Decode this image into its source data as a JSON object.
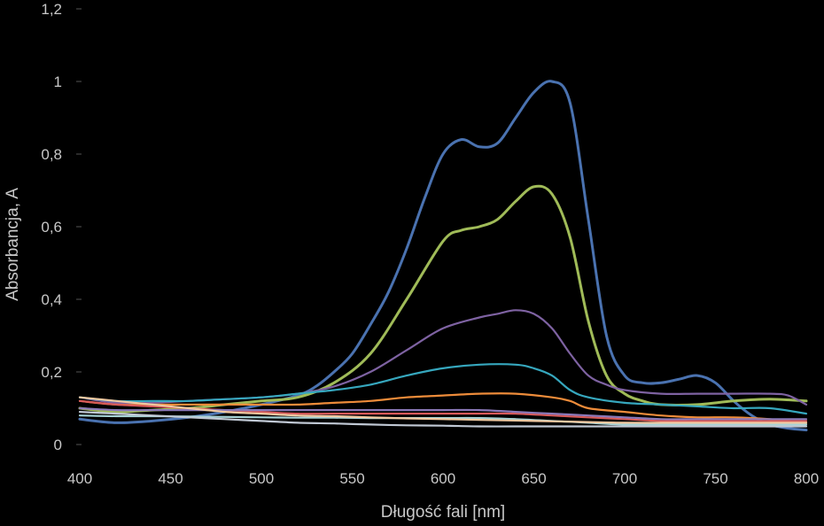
{
  "chart_data": {
    "type": "line",
    "xlabel": "Długość fali [nm]",
    "ylabel": "Absorbancja, A",
    "xlim": [
      400,
      800
    ],
    "ylim": [
      0,
      1.2
    ],
    "x_ticks": [
      400,
      450,
      500,
      550,
      600,
      650,
      700,
      750,
      800
    ],
    "y_ticks": [
      {
        "value": 0,
        "label": "0"
      },
      {
        "value": 0.2,
        "label": "0,2"
      },
      {
        "value": 0.4,
        "label": "0,4"
      },
      {
        "value": 0.6,
        "label": "0,6"
      },
      {
        "value": 0.8,
        "label": "0,8"
      },
      {
        "value": 1,
        "label": "1"
      },
      {
        "value": 1.2,
        "label": "1,2"
      }
    ],
    "grid": false,
    "legend": "none",
    "series": [
      {
        "color": "#4a72b0",
        "points": [
          [
            400,
            0.07
          ],
          [
            420,
            0.06
          ],
          [
            440,
            0.065
          ],
          [
            460,
            0.075
          ],
          [
            480,
            0.09
          ],
          [
            500,
            0.11
          ],
          [
            520,
            0.135
          ],
          [
            530,
            0.16
          ],
          [
            540,
            0.2
          ],
          [
            550,
            0.25
          ],
          [
            560,
            0.33
          ],
          [
            570,
            0.42
          ],
          [
            580,
            0.54
          ],
          [
            590,
            0.68
          ],
          [
            600,
            0.8
          ],
          [
            610,
            0.84
          ],
          [
            620,
            0.82
          ],
          [
            630,
            0.83
          ],
          [
            640,
            0.9
          ],
          [
            650,
            0.97
          ],
          [
            660,
            1.0
          ],
          [
            670,
            0.94
          ],
          [
            680,
            0.62
          ],
          [
            690,
            0.3
          ],
          [
            700,
            0.19
          ],
          [
            710,
            0.17
          ],
          [
            720,
            0.17
          ],
          [
            730,
            0.18
          ],
          [
            740,
            0.19
          ],
          [
            750,
            0.17
          ],
          [
            760,
            0.12
          ],
          [
            770,
            0.08
          ],
          [
            780,
            0.055
          ],
          [
            790,
            0.045
          ],
          [
            800,
            0.04
          ]
        ]
      },
      {
        "color": "#a0bb58",
        "points": [
          [
            400,
            0.1
          ],
          [
            420,
            0.09
          ],
          [
            440,
            0.095
          ],
          [
            460,
            0.1
          ],
          [
            480,
            0.11
          ],
          [
            500,
            0.12
          ],
          [
            520,
            0.13
          ],
          [
            540,
            0.17
          ],
          [
            560,
            0.25
          ],
          [
            580,
            0.4
          ],
          [
            600,
            0.56
          ],
          [
            610,
            0.59
          ],
          [
            620,
            0.6
          ],
          [
            630,
            0.62
          ],
          [
            640,
            0.67
          ],
          [
            650,
            0.71
          ],
          [
            660,
            0.69
          ],
          [
            670,
            0.57
          ],
          [
            680,
            0.34
          ],
          [
            690,
            0.19
          ],
          [
            700,
            0.14
          ],
          [
            710,
            0.12
          ],
          [
            720,
            0.11
          ],
          [
            740,
            0.11
          ],
          [
            760,
            0.12
          ],
          [
            780,
            0.125
          ],
          [
            800,
            0.12
          ]
        ]
      },
      {
        "color": "#7e62a2",
        "points": [
          [
            400,
            0.13
          ],
          [
            420,
            0.115
          ],
          [
            440,
            0.115
          ],
          [
            460,
            0.12
          ],
          [
            480,
            0.125
          ],
          [
            500,
            0.13
          ],
          [
            520,
            0.14
          ],
          [
            540,
            0.16
          ],
          [
            560,
            0.2
          ],
          [
            580,
            0.26
          ],
          [
            600,
            0.32
          ],
          [
            620,
            0.35
          ],
          [
            630,
            0.36
          ],
          [
            640,
            0.37
          ],
          [
            650,
            0.36
          ],
          [
            660,
            0.32
          ],
          [
            670,
            0.25
          ],
          [
            680,
            0.19
          ],
          [
            690,
            0.165
          ],
          [
            700,
            0.15
          ],
          [
            720,
            0.14
          ],
          [
            740,
            0.14
          ],
          [
            760,
            0.14
          ],
          [
            780,
            0.14
          ],
          [
            790,
            0.135
          ],
          [
            800,
            0.11
          ]
        ]
      },
      {
        "color": "#36a7be",
        "points": [
          [
            400,
            0.13
          ],
          [
            420,
            0.12
          ],
          [
            440,
            0.12
          ],
          [
            460,
            0.12
          ],
          [
            480,
            0.125
          ],
          [
            500,
            0.13
          ],
          [
            520,
            0.14
          ],
          [
            540,
            0.15
          ],
          [
            560,
            0.165
          ],
          [
            580,
            0.19
          ],
          [
            600,
            0.21
          ],
          [
            620,
            0.22
          ],
          [
            640,
            0.22
          ],
          [
            650,
            0.21
          ],
          [
            660,
            0.19
          ],
          [
            670,
            0.15
          ],
          [
            680,
            0.13
          ],
          [
            700,
            0.115
          ],
          [
            720,
            0.11
          ],
          [
            740,
            0.105
          ],
          [
            760,
            0.1
          ],
          [
            780,
            0.1
          ],
          [
            800,
            0.085
          ]
        ]
      },
      {
        "color": "#ee8c3a",
        "points": [
          [
            400,
            0.12
          ],
          [
            420,
            0.11
          ],
          [
            440,
            0.11
          ],
          [
            460,
            0.11
          ],
          [
            480,
            0.11
          ],
          [
            500,
            0.11
          ],
          [
            520,
            0.11
          ],
          [
            540,
            0.115
          ],
          [
            560,
            0.12
          ],
          [
            580,
            0.13
          ],
          [
            600,
            0.135
          ],
          [
            620,
            0.14
          ],
          [
            640,
            0.14
          ],
          [
            660,
            0.13
          ],
          [
            670,
            0.12
          ],
          [
            680,
            0.1
          ],
          [
            700,
            0.09
          ],
          [
            720,
            0.08
          ],
          [
            740,
            0.075
          ],
          [
            760,
            0.075
          ],
          [
            780,
            0.07
          ],
          [
            800,
            0.06
          ]
        ]
      },
      {
        "color": "#d85a5a",
        "points": [
          [
            400,
            0.12
          ],
          [
            420,
            0.11
          ],
          [
            440,
            0.105
          ],
          [
            460,
            0.1
          ],
          [
            480,
            0.095
          ],
          [
            500,
            0.09
          ],
          [
            520,
            0.085
          ],
          [
            540,
            0.085
          ],
          [
            560,
            0.085
          ],
          [
            580,
            0.085
          ],
          [
            600,
            0.085
          ],
          [
            620,
            0.085
          ],
          [
            640,
            0.085
          ],
          [
            660,
            0.08
          ],
          [
            680,
            0.075
          ],
          [
            700,
            0.07
          ],
          [
            720,
            0.065
          ],
          [
            740,
            0.065
          ],
          [
            760,
            0.065
          ],
          [
            780,
            0.065
          ],
          [
            800,
            0.065
          ]
        ]
      },
      {
        "color": "#8a78b8",
        "points": [
          [
            400,
            0.1
          ],
          [
            420,
            0.095
          ],
          [
            440,
            0.095
          ],
          [
            460,
            0.095
          ],
          [
            480,
            0.095
          ],
          [
            500,
            0.095
          ],
          [
            520,
            0.095
          ],
          [
            540,
            0.095
          ],
          [
            560,
            0.095
          ],
          [
            580,
            0.095
          ],
          [
            600,
            0.095
          ],
          [
            620,
            0.095
          ],
          [
            640,
            0.09
          ],
          [
            660,
            0.085
          ],
          [
            680,
            0.08
          ],
          [
            700,
            0.075
          ],
          [
            720,
            0.07
          ],
          [
            740,
            0.07
          ],
          [
            760,
            0.07
          ],
          [
            780,
            0.07
          ],
          [
            800,
            0.07
          ]
        ]
      },
      {
        "color": "#a7d3d6",
        "points": [
          [
            400,
            0.08
          ],
          [
            420,
            0.078
          ],
          [
            440,
            0.078
          ],
          [
            460,
            0.077
          ],
          [
            480,
            0.076
          ],
          [
            500,
            0.075
          ],
          [
            520,
            0.074
          ],
          [
            540,
            0.074
          ],
          [
            560,
            0.073
          ],
          [
            580,
            0.073
          ],
          [
            600,
            0.073
          ],
          [
            620,
            0.073
          ],
          [
            640,
            0.07
          ],
          [
            660,
            0.065
          ],
          [
            680,
            0.06
          ],
          [
            700,
            0.055
          ],
          [
            720,
            0.055
          ],
          [
            740,
            0.055
          ],
          [
            760,
            0.055
          ],
          [
            780,
            0.055
          ],
          [
            800,
            0.055
          ]
        ]
      },
      {
        "color": "#c0c8d4",
        "points": [
          [
            400,
            0.09
          ],
          [
            420,
            0.085
          ],
          [
            440,
            0.08
          ],
          [
            460,
            0.075
          ],
          [
            480,
            0.07
          ],
          [
            500,
            0.065
          ],
          [
            520,
            0.06
          ],
          [
            540,
            0.058
          ],
          [
            560,
            0.055
          ],
          [
            580,
            0.053
          ],
          [
            600,
            0.052
          ],
          [
            620,
            0.05
          ],
          [
            640,
            0.05
          ],
          [
            660,
            0.05
          ],
          [
            680,
            0.05
          ],
          [
            700,
            0.05
          ],
          [
            720,
            0.05
          ],
          [
            740,
            0.05
          ],
          [
            760,
            0.05
          ],
          [
            780,
            0.05
          ],
          [
            800,
            0.05
          ]
        ]
      },
      {
        "color": "#f0c8a0",
        "points": [
          [
            400,
            0.13
          ],
          [
            420,
            0.12
          ],
          [
            440,
            0.11
          ],
          [
            460,
            0.1
          ],
          [
            480,
            0.09
          ],
          [
            500,
            0.085
          ],
          [
            520,
            0.08
          ],
          [
            540,
            0.078
          ],
          [
            560,
            0.075
          ],
          [
            580,
            0.072
          ],
          [
            600,
            0.07
          ],
          [
            620,
            0.068
          ],
          [
            640,
            0.066
          ],
          [
            660,
            0.064
          ],
          [
            680,
            0.062
          ],
          [
            700,
            0.06
          ],
          [
            720,
            0.06
          ],
          [
            740,
            0.06
          ],
          [
            760,
            0.06
          ],
          [
            780,
            0.06
          ],
          [
            800,
            0.06
          ]
        ]
      }
    ]
  }
}
